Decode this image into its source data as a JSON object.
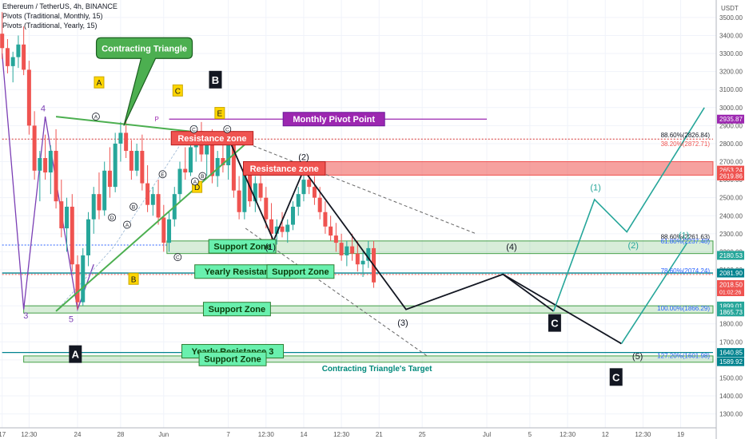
{
  "legend": {
    "line1": "Ethereum / TetherUS, 4h, BINANCE",
    "line2": "Pivots (Traditional, Monthly, 15)",
    "line3": "Pivots (Traditional, Yearly, 15)"
  },
  "chart_data": {
    "type": "candlestick",
    "currency": "USDT",
    "y_axis": {
      "ylim": [
        1223,
        3597
      ],
      "ticks": [
        1300,
        1400,
        1500,
        1600,
        1700,
        1800,
        1900,
        2000,
        2100,
        2200,
        2300,
        2400,
        2500,
        2600,
        2700,
        2800,
        2900,
        3000,
        3100,
        3200,
        3300,
        3400,
        3500
      ]
    },
    "x_axis": {
      "ticks": [
        {
          "label": "17",
          "t": 0
        },
        {
          "label": "12:30",
          "t": 2.5
        },
        {
          "label": "24",
          "t": 7
        },
        {
          "label": "28",
          "t": 11
        },
        {
          "label": "Jun",
          "t": 15
        },
        {
          "label": "7",
          "t": 21
        },
        {
          "label": "12:30",
          "t": 24.5
        },
        {
          "label": "14",
          "t": 28
        },
        {
          "label": "12:30",
          "t": 31.5
        },
        {
          "label": "21",
          "t": 35
        },
        {
          "label": "25",
          "t": 39
        },
        {
          "label": "Jul",
          "t": 45
        },
        {
          "label": "5",
          "t": 49
        },
        {
          "label": "12:30",
          "t": 52.5
        },
        {
          "label": "12",
          "t": 56
        },
        {
          "label": "12:30",
          "t": 59.5
        },
        {
          "label": "19",
          "t": 63
        }
      ]
    },
    "price_labels": [
      {
        "value": "2935.87",
        "price": 2936,
        "color": "#9c27b0"
      },
      {
        "value": "2653.24",
        "price": 2653,
        "color": "#ef5350"
      },
      {
        "value": "2619.86",
        "price": 2620,
        "color": "#ef5350"
      },
      {
        "value": "2180.53",
        "price": 2180,
        "color": "#26a69a"
      },
      {
        "value": "2081.90",
        "price": 2082,
        "color": "#00838f"
      },
      {
        "value": "2018.50",
        "sub": "01:02:26",
        "price": 2018,
        "color": "#ef5350"
      },
      {
        "value": "1899.01",
        "price": 1899,
        "color": "#26a69a"
      },
      {
        "value": "1865.73",
        "price": 1866,
        "color": "#26a69a"
      },
      {
        "value": "1640.85",
        "price": 1641,
        "color": "#00838f"
      },
      {
        "value": "1589.92",
        "price": 1590,
        "color": "#00838f"
      }
    ],
    "zones": [
      {
        "label": "Resistance zone",
        "low": 2625,
        "high": 2700,
        "t0": 23.5,
        "t1": 66,
        "color": "red"
      },
      {
        "label": "Support Zone",
        "low": 2190,
        "high": 2260,
        "t0": 15.3,
        "t1": 66,
        "color": "green"
      },
      {
        "label": "Support Zone",
        "low": 1860,
        "high": 1900,
        "t0": 2,
        "t1": 66,
        "color": "green"
      },
      {
        "label": "Support Zone",
        "low": 1587,
        "high": 1622,
        "t0": 2,
        "t1": 66,
        "color": "green"
      }
    ],
    "lines": [
      {
        "label": "Monthly Pivot Point",
        "price": 2935.87,
        "t0": 15.5,
        "t1": 45,
        "color": "#9c27b0",
        "style": "solid"
      },
      {
        "label": "Resistance zone",
        "price": 2825,
        "t0": 0,
        "t1": 66,
        "color": "#d32f2f",
        "style": "dotted"
      },
      {
        "label": "Yearly Resistance 4",
        "price": 2081.9,
        "t0": 0,
        "t1": 66,
        "color": "#00838f",
        "style": "solid"
      },
      {
        "label": "Yearly Resistance 3",
        "price": 1640.85,
        "t0": 0,
        "t1": 66,
        "color": "#00838f",
        "style": "solid"
      },
      {
        "label": "",
        "price": 2237,
        "t0": 0,
        "t1": 15.3,
        "color": "#2962ff",
        "style": "dotted"
      },
      {
        "label": "",
        "price": 2074,
        "t0": 0,
        "t1": 66,
        "color": "#ef5350",
        "style": "dotted"
      }
    ],
    "fibonacci": [
      {
        "label": "88.60%(2826.84)",
        "price": 2826.84,
        "color": "#131722"
      },
      {
        "label": "38.20%(2872.71)",
        "price": 2826.84,
        "color": "#ef5350",
        "below": true
      },
      {
        "label": "88.60%(2261.63)",
        "price": 2261.63,
        "color": "#131722"
      },
      {
        "label": "61.80%(2237.48)",
        "price": 2237.48,
        "color": "#2962ff"
      },
      {
        "label": "78.60%(2074.24)",
        "price": 2074.24,
        "color": "#2962ff"
      },
      {
        "label": "100.00%(1866.29)",
        "price": 1866.29,
        "color": "#2962ff"
      },
      {
        "label": "127.20%(1601.98)",
        "price": 1601.98,
        "color": "#2962ff"
      }
    ],
    "annotations": {
      "callout": "Contracting Triangle",
      "target": "Contracting Triangle's Target",
      "pivot_marker": "P",
      "big_letters": [
        "A",
        "B",
        "C",
        "C"
      ],
      "small_letters": [
        "A",
        "C",
        "E",
        "D",
        "B"
      ],
      "numbers": [
        "3",
        "4",
        "5"
      ],
      "circled": [
        "A",
        "B",
        "C",
        "D",
        "E"
      ],
      "wave_labels": [
        "(1)",
        "(2)",
        "(3)",
        "(4)",
        "(5)"
      ],
      "teal_labels": [
        "(1)",
        "(2)",
        "(1)"
      ]
    },
    "candles": [
      [
        0.0,
        3410,
        3530,
        3270,
        3330
      ],
      [
        0.5,
        3330,
        3380,
        3190,
        3230
      ],
      [
        1.0,
        3230,
        3310,
        3140,
        3280
      ],
      [
        1.5,
        3280,
        3400,
        3220,
        3350
      ],
      [
        2.0,
        3350,
        3450,
        3180,
        3210
      ],
      [
        2.5,
        3210,
        3260,
        2850,
        2900
      ],
      [
        3.0,
        2900,
        2980,
        2600,
        2650
      ],
      [
        3.5,
        2650,
        2760,
        2480,
        2720
      ],
      [
        4.0,
        2720,
        2850,
        2600,
        2640
      ],
      [
        4.5,
        2640,
        2790,
        2520,
        2760
      ],
      [
        5.0,
        2760,
        2880,
        2440,
        2480
      ],
      [
        5.5,
        2480,
        2600,
        2280,
        2330
      ],
      [
        6.0,
        2330,
        2500,
        2200,
        2450
      ],
      [
        6.5,
        2450,
        2520,
        2090,
        2130
      ],
      [
        7.0,
        2130,
        2180,
        1880,
        1920
      ],
      [
        7.5,
        1920,
        2220,
        1900,
        2180
      ],
      [
        8.0,
        2180,
        2420,
        2120,
        2380
      ],
      [
        8.5,
        2380,
        2560,
        2300,
        2520
      ],
      [
        9.0,
        2520,
        2640,
        2380,
        2430
      ],
      [
        9.5,
        2430,
        2700,
        2400,
        2650
      ],
      [
        10.0,
        2650,
        2780,
        2500,
        2560
      ],
      [
        10.5,
        2560,
        2860,
        2530,
        2800
      ],
      [
        11.0,
        2800,
        2920,
        2700,
        2860
      ],
      [
        11.5,
        2860,
        2930,
        2720,
        2760
      ],
      [
        12.0,
        2760,
        2820,
        2600,
        2650
      ],
      [
        12.5,
        2650,
        2800,
        2620,
        2760
      ],
      [
        13.0,
        2760,
        2850,
        2540,
        2580
      ],
      [
        13.5,
        2580,
        2680,
        2420,
        2460
      ],
      [
        14.0,
        2460,
        2560,
        2400,
        2520
      ],
      [
        14.5,
        2520,
        2600,
        2350,
        2390
      ],
      [
        15.0,
        2390,
        2460,
        2200,
        2250
      ],
      [
        15.5,
        2250,
        2420,
        2200,
        2380
      ],
      [
        16.0,
        2380,
        2560,
        2340,
        2520
      ],
      [
        16.5,
        2520,
        2700,
        2480,
        2660
      ],
      [
        17.0,
        2660,
        2780,
        2600,
        2640
      ],
      [
        17.5,
        2640,
        2820,
        2620,
        2780
      ],
      [
        18.0,
        2780,
        2900,
        2700,
        2870
      ],
      [
        18.5,
        2870,
        2920,
        2700,
        2740
      ],
      [
        19.0,
        2740,
        2860,
        2620,
        2820
      ],
      [
        19.5,
        2820,
        2880,
        2580,
        2620
      ],
      [
        20.0,
        2620,
        2760,
        2560,
        2720
      ],
      [
        20.5,
        2720,
        2850,
        2640,
        2680
      ],
      [
        21.0,
        2680,
        2880,
        2600,
        2840
      ],
      [
        21.5,
        2840,
        2870,
        2500,
        2540
      ],
      [
        22.0,
        2540,
        2620,
        2380,
        2420
      ],
      [
        22.5,
        2420,
        2700,
        2380,
        2640
      ],
      [
        23.0,
        2640,
        2680,
        2450,
        2480
      ],
      [
        23.5,
        2480,
        2620,
        2420,
        2580
      ],
      [
        24.0,
        2580,
        2640,
        2480,
        2500
      ],
      [
        24.5,
        2500,
        2560,
        2330,
        2380
      ],
      [
        25.0,
        2380,
        2470,
        2270,
        2300
      ],
      [
        25.5,
        2300,
        2380,
        2240,
        2340
      ],
      [
        26.0,
        2340,
        2420,
        2280,
        2310
      ],
      [
        26.5,
        2310,
        2380,
        2250,
        2350
      ],
      [
        27.0,
        2350,
        2480,
        2320,
        2450
      ],
      [
        27.5,
        2450,
        2560,
        2400,
        2520
      ],
      [
        28.0,
        2520,
        2640,
        2480,
        2600
      ],
      [
        28.5,
        2600,
        2680,
        2520,
        2560
      ],
      [
        29.0,
        2560,
        2620,
        2460,
        2500
      ],
      [
        29.5,
        2500,
        2560,
        2380,
        2420
      ],
      [
        30.0,
        2420,
        2480,
        2300,
        2340
      ],
      [
        30.5,
        2340,
        2400,
        2260,
        2290
      ],
      [
        31.0,
        2290,
        2360,
        2200,
        2250
      ],
      [
        31.5,
        2250,
        2300,
        2150,
        2180
      ],
      [
        32.0,
        2180,
        2260,
        2120,
        2230
      ],
      [
        32.5,
        2230,
        2300,
        2150,
        2190
      ],
      [
        33.0,
        2190,
        2260,
        2090,
        2130
      ],
      [
        33.5,
        2130,
        2200,
        2060,
        2150
      ],
      [
        34.0,
        2150,
        2260,
        2110,
        2220
      ],
      [
        34.5,
        2220,
        2260,
        2000,
        2030
      ]
    ],
    "paths": {
      "green_triangle_upper": [
        [
          5,
          2950
        ],
        [
          15.6,
          2880
        ],
        [
          23.2,
          2830
        ]
      ],
      "green_triangle_lower": [
        [
          5,
          1870
        ],
        [
          23.2,
          2830
        ]
      ],
      "green_triangle_inner": [
        [
          5,
          1870
        ],
        [
          10.4,
          2230
        ],
        [
          16.6,
          2800
        ],
        [
          19.8,
          2860
        ],
        [
          20.8,
          2830
        ]
      ],
      "black_impulse": [
        [
          20.9,
          2845
        ],
        [
          25.2,
          2261
        ],
        [
          28.0,
          2655
        ],
        [
          37.5,
          1880
        ],
        [
          46.5,
          2075
        ],
        [
          51.2,
          1870
        ]
      ],
      "black_wave_c": [
        [
          46.5,
          2075
        ],
        [
          57.5,
          1690
        ]
      ],
      "dashed_channel_upper": [
        [
          20.9,
          2845
        ],
        [
          44,
          2300
        ]
      ],
      "dashed_channel_lower": [
        [
          22.6,
          2330
        ],
        [
          39.5,
          1620
        ]
      ],
      "teal_projection_1": [
        [
          51.2,
          1870
        ],
        [
          55.0,
          2490
        ],
        [
          58.0,
          2310
        ],
        [
          65.2,
          3000
        ]
      ],
      "teal_projection_2": [
        [
          57.5,
          1690
        ],
        [
          63.6,
          2250
        ]
      ],
      "purple_wave": [
        [
          0,
          3300
        ],
        [
          2.0,
          1880
        ],
        [
          4.0,
          2950
        ],
        [
          7.0,
          1880
        ],
        [
          8.5,
          2130
        ]
      ]
    }
  }
}
